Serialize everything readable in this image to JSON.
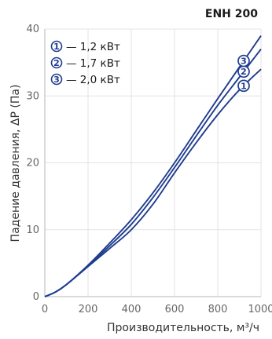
{
  "model_label": "ENH 200",
  "chart_data": {
    "type": "line",
    "title": "",
    "xlabel": "Производительность, м³/ч",
    "ylabel": "Падение давления, ΔP (Па)",
    "xlim": [
      0,
      1000
    ],
    "ylim": [
      0,
      40
    ],
    "x_ticks": [
      0,
      200,
      400,
      600,
      800,
      1000
    ],
    "y_ticks": [
      0,
      10,
      20,
      30,
      40
    ],
    "x_tick_labels": [
      "0",
      "200",
      "400",
      "600",
      "800",
      "1000"
    ],
    "y_tick_labels": [
      "0",
      "10",
      "20",
      "30",
      "40"
    ],
    "grid": true,
    "legend_position": "top-left",
    "line_color": "#1f3c8f",
    "series": [
      {
        "marker": "1",
        "name": "— 1,2 кВт",
        "points": [
          [
            0,
            0
          ],
          [
            50,
            0.7
          ],
          [
            100,
            1.8
          ],
          [
            200,
            4.5
          ],
          [
            300,
            7.2
          ],
          [
            400,
            10
          ],
          [
            500,
            13.8
          ],
          [
            600,
            18.5
          ],
          [
            700,
            23
          ],
          [
            800,
            27.2
          ],
          [
            900,
            30.9
          ],
          [
            1000,
            34
          ]
        ]
      },
      {
        "marker": "2",
        "name": "— 1,7 кВт",
        "points": [
          [
            0,
            0
          ],
          [
            50,
            0.7
          ],
          [
            100,
            1.8
          ],
          [
            200,
            4.6
          ],
          [
            300,
            7.6
          ],
          [
            400,
            10.8
          ],
          [
            500,
            14.8
          ],
          [
            600,
            19.3
          ],
          [
            700,
            24
          ],
          [
            800,
            28.6
          ],
          [
            900,
            32.8
          ],
          [
            1000,
            37
          ]
        ]
      },
      {
        "marker": "3",
        "name": "— 2,0 кВт",
        "points": [
          [
            0,
            0
          ],
          [
            50,
            0.7
          ],
          [
            100,
            1.8
          ],
          [
            200,
            4.7
          ],
          [
            300,
            8
          ],
          [
            400,
            11.5
          ],
          [
            500,
            15.5
          ],
          [
            600,
            20
          ],
          [
            700,
            24.8
          ],
          [
            800,
            29.6
          ],
          [
            900,
            34.3
          ],
          [
            1000,
            39
          ]
        ]
      }
    ]
  }
}
